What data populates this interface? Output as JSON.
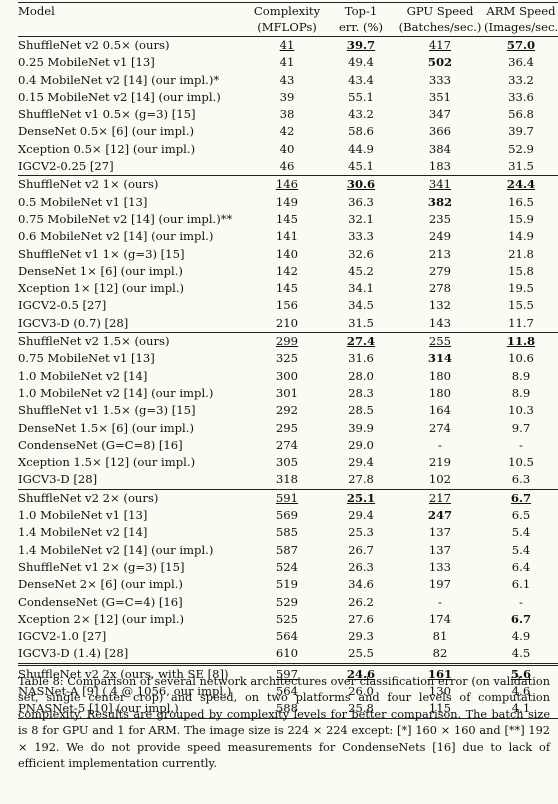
{
  "headers": {
    "model": "Model",
    "complexity": [
      "Complexity",
      "(MFLOPs)"
    ],
    "top1": [
      "Top-1",
      "err. (%)"
    ],
    "gpu": [
      "GPU Speed",
      "(Batches/sec.)"
    ],
    "arm": [
      "ARM Speed",
      "(Images/sec.)"
    ]
  },
  "groups": [
    {
      "rows": [
        {
          "model": "ShuffleNet v2 0.5× (ours)",
          "c": "41",
          "e": "39.7",
          "g": "417",
          "a": "57.0",
          "fmt": [
            "u",
            "bu",
            "u",
            "bu"
          ]
        },
        {
          "model": "0.25 MobileNet v1 [13]",
          "c": "41",
          "e": "49.4",
          "g": "502",
          "a": "36.4",
          "fmt": [
            "",
            "",
            "b",
            ""
          ]
        },
        {
          "model": "0.4 MobileNet v2 [14] (our impl.)*",
          "c": "43",
          "e": "43.4",
          "g": "333",
          "a": "33.2"
        },
        {
          "model": "0.15 MobileNet v2 [14] (our impl.)",
          "c": "39",
          "e": "55.1",
          "g": "351",
          "a": "33.6"
        },
        {
          "model": "ShuffleNet v1 0.5× (g=3) [15]",
          "c": "38",
          "e": "43.2",
          "g": "347",
          "a": "56.8"
        },
        {
          "model": "DenseNet 0.5× [6] (our impl.)",
          "c": "42",
          "e": "58.6",
          "g": "366",
          "a": "39.7"
        },
        {
          "model": "Xception 0.5× [12] (our impl.)",
          "c": "40",
          "e": "44.9",
          "g": "384",
          "a": "52.9"
        },
        {
          "model": "IGCV2-0.25 [27]",
          "c": "46",
          "e": "45.1",
          "g": "183",
          "a": "31.5"
        }
      ]
    },
    {
      "rows": [
        {
          "model": "ShuffleNet v2 1× (ours)",
          "c": "146",
          "e": "30.6",
          "g": "341",
          "a": "24.4",
          "fmt": [
            "u",
            "bu",
            "u",
            "bu"
          ]
        },
        {
          "model": "0.5 MobileNet v1 [13]",
          "c": "149",
          "e": "36.3",
          "g": "382",
          "a": "16.5",
          "fmt": [
            "",
            "",
            "b",
            ""
          ]
        },
        {
          "model": "0.75 MobileNet v2 [14] (our impl.)**",
          "c": "145",
          "e": "32.1",
          "g": "235",
          "a": "15.9"
        },
        {
          "model": "0.6 MobileNet v2 [14] (our impl.)",
          "c": "141",
          "e": "33.3",
          "g": "249",
          "a": "14.9"
        },
        {
          "model": "ShuffleNet v1 1× (g=3) [15]",
          "c": "140",
          "e": "32.6",
          "g": "213",
          "a": "21.8"
        },
        {
          "model": "DenseNet 1× [6] (our impl.)",
          "c": "142",
          "e": "45.2",
          "g": "279",
          "a": "15.8"
        },
        {
          "model": "Xception 1× [12] (our impl.)",
          "c": "145",
          "e": "34.1",
          "g": "278",
          "a": "19.5"
        },
        {
          "model": "IGCV2-0.5 [27]",
          "c": "156",
          "e": "34.5",
          "g": "132",
          "a": "15.5"
        },
        {
          "model": "IGCV3-D (0.7) [28]",
          "c": "210",
          "e": "31.5",
          "g": "143",
          "a": "11.7"
        }
      ]
    },
    {
      "rows": [
        {
          "model": "ShuffleNet v2 1.5× (ours)",
          "c": "299",
          "e": "27.4",
          "g": "255",
          "a": "11.8",
          "fmt": [
            "u",
            "bu",
            "u",
            "bu"
          ]
        },
        {
          "model": "0.75 MobileNet v1 [13]",
          "c": "325",
          "e": "31.6",
          "g": "314",
          "a": "10.6",
          "fmt": [
            "",
            "",
            "b",
            ""
          ]
        },
        {
          "model": "1.0 MobileNet v2 [14]",
          "c": "300",
          "e": "28.0",
          "g": "180",
          "a": "8.9"
        },
        {
          "model": "1.0 MobileNet v2 [14] (our impl.)",
          "c": "301",
          "e": "28.3",
          "g": "180",
          "a": "8.9"
        },
        {
          "model": "ShuffleNet v1 1.5× (g=3) [15]",
          "c": "292",
          "e": "28.5",
          "g": "164",
          "a": "10.3"
        },
        {
          "model": "DenseNet 1.5× [6] (our impl.)",
          "c": "295",
          "e": "39.9",
          "g": "274",
          "a": "9.7"
        },
        {
          "model": "CondenseNet (G=C=8) [16]",
          "c": "274",
          "e": "29.0",
          "g": "-",
          "a": "-"
        },
        {
          "model": "Xception 1.5× [12] (our impl.)",
          "c": "305",
          "e": "29.4",
          "g": "219",
          "a": "10.5"
        },
        {
          "model": "IGCV3-D [28]",
          "c": "318",
          "e": "27.8",
          "g": "102",
          "a": "6.3"
        }
      ]
    },
    {
      "rows": [
        {
          "model": "ShuffleNet v2 2× (ours)",
          "c": "591",
          "e": "25.1",
          "g": "217",
          "a": "6.7",
          "fmt": [
            "u",
            "bu",
            "u",
            "bu"
          ]
        },
        {
          "model": "1.0 MobileNet v1 [13]",
          "c": "569",
          "e": "29.4",
          "g": "247",
          "a": "6.5",
          "fmt": [
            "",
            "",
            "b",
            ""
          ]
        },
        {
          "model": "1.4 MobileNet v2 [14]",
          "c": "585",
          "e": "25.3",
          "g": "137",
          "a": "5.4"
        },
        {
          "model": "1.4 MobileNet v2 [14] (our impl.)",
          "c": "587",
          "e": "26.7",
          "g": "137",
          "a": "5.4"
        },
        {
          "model": "ShuffleNet v1 2× (g=3) [15]",
          "c": "524",
          "e": "26.3",
          "g": "133",
          "a": "6.4"
        },
        {
          "model": "DenseNet 2× [6] (our impl.)",
          "c": "519",
          "e": "34.6",
          "g": "197",
          "a": "6.1"
        },
        {
          "model": "CondenseNet (G=C=4) [16]",
          "c": "529",
          "e": "26.2",
          "g": "-",
          "a": "-"
        },
        {
          "model": "Xception 2× [12] (our impl.)",
          "c": "525",
          "e": "27.6",
          "g": "174",
          "a": "6.7",
          "fmt": [
            "",
            "",
            "",
            "b"
          ]
        },
        {
          "model": "IGCV2-1.0 [27]",
          "c": "564",
          "e": "29.3",
          "g": "81",
          "a": "4.9"
        },
        {
          "model": "IGCV3-D (1.4) [28]",
          "c": "610",
          "e": "25.5",
          "g": "82",
          "a": "4.5"
        }
      ]
    },
    {
      "rows": [
        {
          "model": "ShuffleNet v2 2x (ours, with SE [8])",
          "c": "597",
          "e": "24.6",
          "g": "161",
          "a": "5.6",
          "fmt": [
            "u",
            "bu",
            "bu",
            "bu"
          ]
        },
        {
          "model": "NASNet-A [9] ( 4 @ 1056, our impl.)",
          "c": "564",
          "e": "26.0",
          "g": "130",
          "a": "4.6"
        },
        {
          "model": "PNASNet-5 [10] (our impl.)",
          "c": "588",
          "e": "25.8",
          "g": "115",
          "a": "4.1"
        }
      ]
    }
  ],
  "caption": "Table 8: Comparison of several network architectures over classification error (on validation set, single center crop) and speed, on two platforms and four levels of computation complexity. Results are grouped by complexity levels for better comparison. The batch size is 8 for GPU and 1 for ARM. The image size is 224 × 224 except: [*] 160 × 160 and [**] 192 × 192. We do not provide speed measurements for CondenseNets [16] due to lack of efficient implementation currently."
}
